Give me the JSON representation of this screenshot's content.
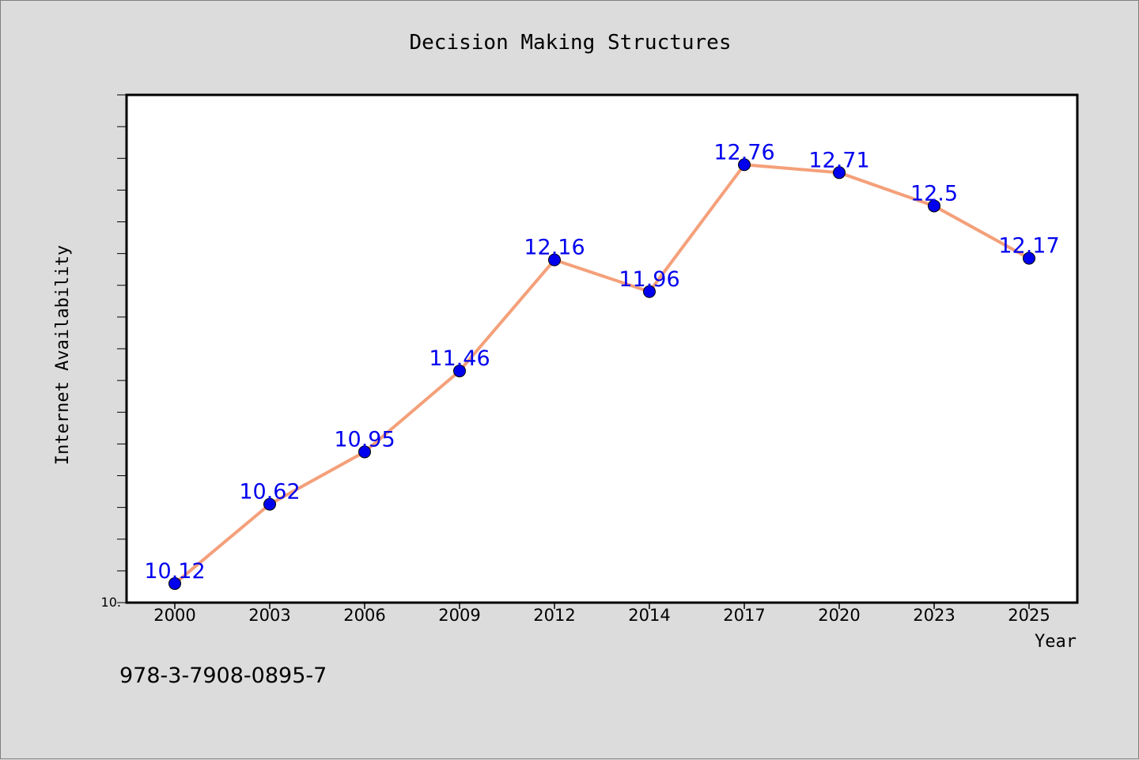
{
  "chart_data": {
    "type": "line",
    "title": "Decision Making Structures",
    "xlabel": "Year",
    "ylabel": "Internet Availability",
    "categories": [
      "2000",
      "2003",
      "2006",
      "2009",
      "2012",
      "2014",
      "2017",
      "2020",
      "2023",
      "2025"
    ],
    "series": [
      {
        "values": [
          10.12,
          10.62,
          10.95,
          11.46,
          12.16,
          11.96,
          12.76,
          12.71,
          12.5,
          12.17
        ],
        "line_color": "#f4a07a",
        "marker_color": "#0000ee",
        "label_color": "#0000ee"
      }
    ],
    "data_labels": [
      "10.12",
      "10.62",
      "10.95",
      "11.46",
      "12.16",
      "11.96",
      "12.76",
      "12.71",
      "12.5",
      "12.17"
    ],
    "ylim": [
      10.0,
      13.2
    ],
    "ytick_labels": [
      "10."
    ],
    "grid": false,
    "legend": "none"
  },
  "footer_code": "978-3-7908-0895-7",
  "colors": {
    "background": "#dcdcdc",
    "plot_background": "#ffffff",
    "axis": "#000000"
  }
}
